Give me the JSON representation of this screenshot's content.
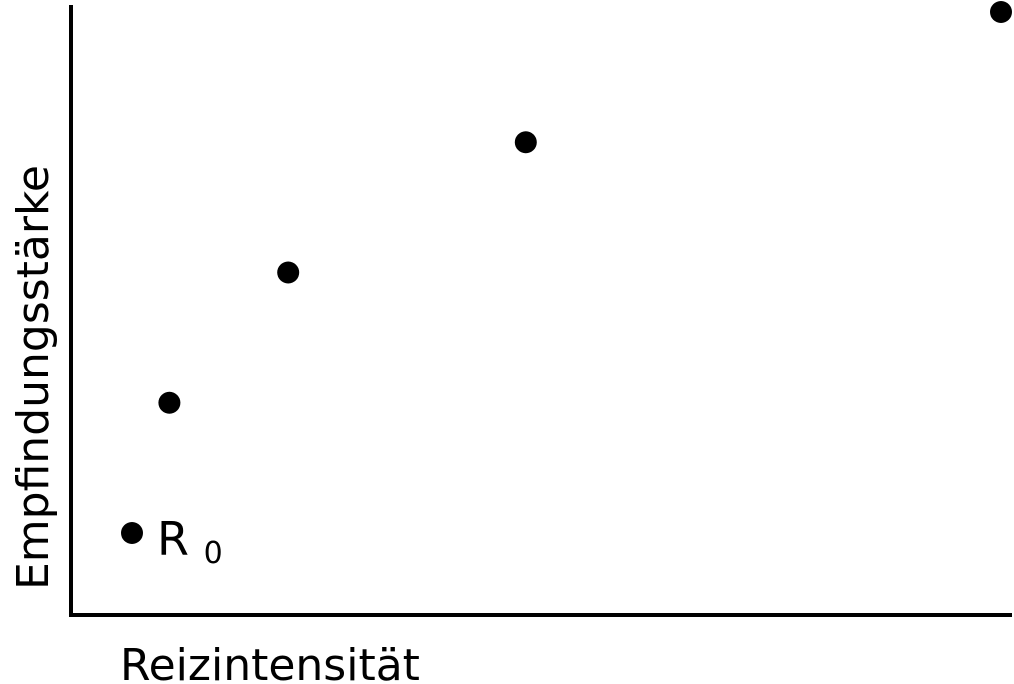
{
  "chart_data": {
    "type": "scatter",
    "title": "",
    "xlabel": "Reizintensität",
    "ylabel": "Empfindungsstärke",
    "grid": false,
    "legend": "none",
    "xlim": [
      0,
      18
    ],
    "ylim": [
      0,
      5
    ],
    "points": [
      {
        "x": 1,
        "y": 0.5
      },
      {
        "x": 2,
        "y": 1.5
      },
      {
        "x": 4,
        "y": 2.5
      },
      {
        "x": 8,
        "y": 3.5
      },
      {
        "x": 16,
        "y": 4.5
      }
    ],
    "annotations": [
      {
        "point_index": 0,
        "text": "R",
        "subscript": "0"
      }
    ],
    "colors": {
      "points": "#000000",
      "axes": "#000000"
    }
  }
}
